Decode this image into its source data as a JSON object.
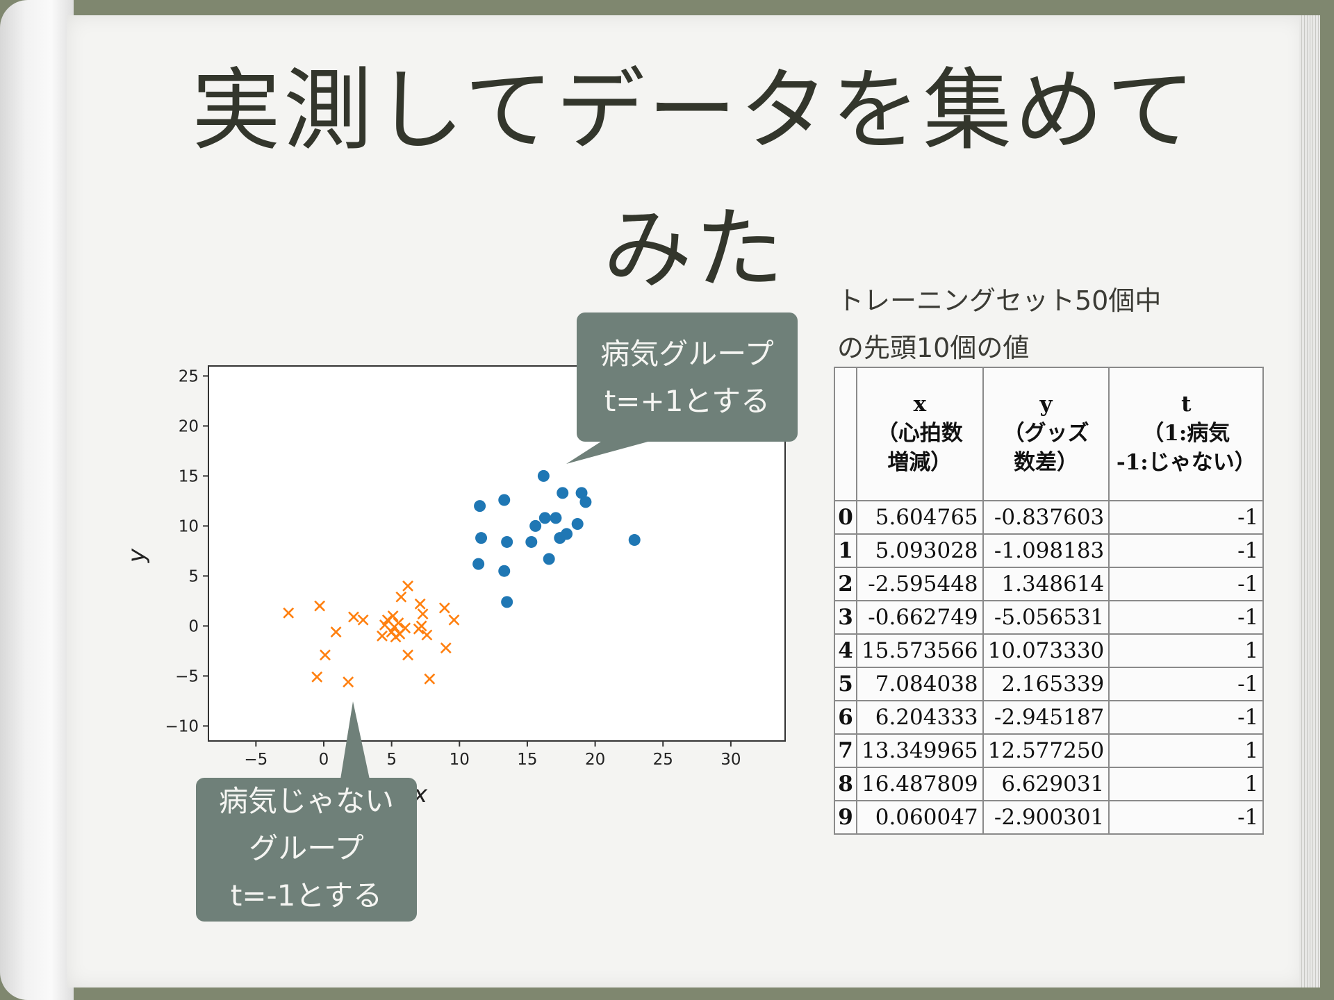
{
  "title": [
    "実測してデータを集めて",
    "みた"
  ],
  "caption": [
    "トレーニングセット50個中",
    "の先頭10個の値"
  ],
  "callouts": {
    "sick": [
      "病気グループ",
      "t=+1とする"
    ],
    "healthy": [
      "病気じゃない",
      "グループ",
      "t=-1とする"
    ]
  },
  "table": {
    "headers": [
      [
        "",
        "",
        ""
      ],
      [
        "x",
        "（心拍数",
        "増減）"
      ],
      [
        "y",
        "（グッズ",
        "数差）"
      ],
      [
        "t",
        "（1:病気",
        "-1:じゃない）"
      ]
    ],
    "rows": [
      [
        "0",
        "5.604765",
        "-0.837603",
        "-1"
      ],
      [
        "1",
        "5.093028",
        "-1.098183",
        "-1"
      ],
      [
        "2",
        "-2.595448",
        "1.348614",
        "-1"
      ],
      [
        "3",
        "-0.662749",
        "-5.056531",
        "-1"
      ],
      [
        "4",
        "15.573566",
        "10.073330",
        "1"
      ],
      [
        "5",
        "7.084038",
        "2.165339",
        "-1"
      ],
      [
        "6",
        "6.204333",
        "-2.945187",
        "-1"
      ],
      [
        "7",
        "13.349965",
        "12.577250",
        "1"
      ],
      [
        "8",
        "16.487809",
        "6.629031",
        "1"
      ],
      [
        "9",
        "0.060047",
        "-2.900301",
        "-1"
      ]
    ]
  },
  "chart_data": {
    "type": "scatter",
    "xlabel": "x",
    "ylabel": "y",
    "xlim": [
      -8.5,
      34
    ],
    "ylim": [
      -11.5,
      26
    ],
    "xticks": [
      -5,
      0,
      5,
      10,
      15,
      20,
      25,
      30
    ],
    "yticks": [
      -10,
      -5,
      0,
      5,
      10,
      15,
      20,
      25
    ],
    "xtick_labels": [
      "−5",
      "0",
      "5",
      "10",
      "15",
      "20",
      "25",
      "30"
    ],
    "ytick_labels": [
      "−10",
      "−5",
      "0",
      "5",
      "10",
      "15",
      "20",
      "25"
    ],
    "grid": false,
    "series": [
      {
        "marker": "circle",
        "color": "#1f77b4",
        "points": [
          [
            11.5,
            12.0
          ],
          [
            11.6,
            8.8
          ],
          [
            11.4,
            6.2
          ],
          [
            13.3,
            12.6
          ],
          [
            13.5,
            8.4
          ],
          [
            13.3,
            5.5
          ],
          [
            13.5,
            2.4
          ],
          [
            15.3,
            8.4
          ],
          [
            15.6,
            10.0
          ],
          [
            16.2,
            15.0
          ],
          [
            16.3,
            10.8
          ],
          [
            16.6,
            6.7
          ],
          [
            17.1,
            10.8
          ],
          [
            17.4,
            8.8
          ],
          [
            17.6,
            13.3
          ],
          [
            17.9,
            9.2
          ],
          [
            18.7,
            10.2
          ],
          [
            19.0,
            13.3
          ],
          [
            19.3,
            12.4
          ],
          [
            22.9,
            8.6
          ]
        ]
      },
      {
        "marker": "x",
        "color": "#ff7f0e",
        "points": [
          [
            -2.6,
            1.3
          ],
          [
            -0.3,
            2.0
          ],
          [
            0.1,
            -2.9
          ],
          [
            -0.5,
            -5.1
          ],
          [
            0.9,
            -0.6
          ],
          [
            1.8,
            -5.6
          ],
          [
            2.2,
            0.9
          ],
          [
            2.9,
            0.6
          ],
          [
            4.3,
            -1.0
          ],
          [
            4.5,
            0.1
          ],
          [
            4.7,
            0.6
          ],
          [
            5.0,
            -0.6
          ],
          [
            5.1,
            1.0
          ],
          [
            5.2,
            -0.1
          ],
          [
            5.3,
            -1.1
          ],
          [
            5.5,
            0.3
          ],
          [
            5.6,
            -0.8
          ],
          [
            5.7,
            2.9
          ],
          [
            6.0,
            -0.2
          ],
          [
            6.2,
            -2.9
          ],
          [
            6.2,
            4.0
          ],
          [
            7.0,
            -0.3
          ],
          [
            7.1,
            2.2
          ],
          [
            7.2,
            0.0
          ],
          [
            7.3,
            1.2
          ],
          [
            7.6,
            -0.9
          ],
          [
            7.8,
            -5.3
          ],
          [
            8.9,
            1.8
          ],
          [
            9.0,
            -2.2
          ],
          [
            9.6,
            0.6
          ]
        ]
      }
    ]
  },
  "colors": {
    "callout": "#6f8079",
    "paper": "#f4f4f2",
    "background": "#7f876f"
  }
}
